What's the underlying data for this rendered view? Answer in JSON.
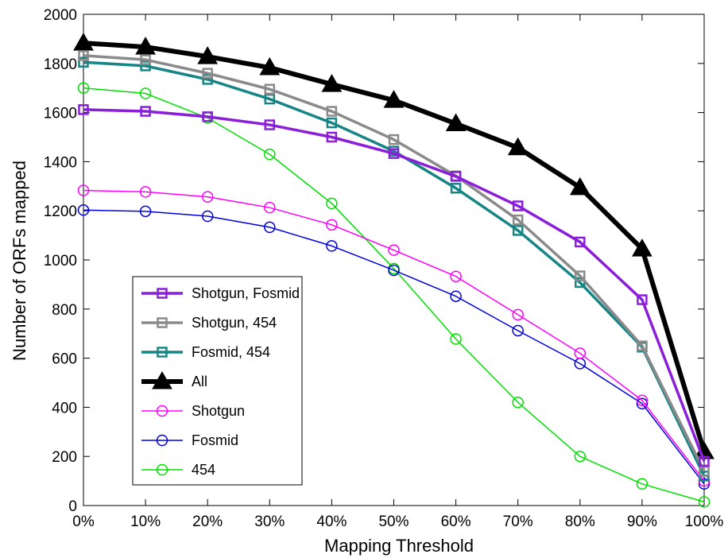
{
  "chart_data": {
    "type": "line",
    "xlabel": "Mapping Threshold",
    "ylabel": "Number of ORFs mapped",
    "categories": [
      "0%",
      "10%",
      "20%",
      "30%",
      "40%",
      "50%",
      "60%",
      "70%",
      "80%",
      "90%",
      "100%"
    ],
    "x": [
      0,
      10,
      20,
      30,
      40,
      50,
      60,
      70,
      80,
      90,
      100
    ],
    "ylim": [
      0,
      2000
    ],
    "yticks": [
      0,
      200,
      400,
      600,
      800,
      1000,
      1200,
      1400,
      1600,
      1800,
      2000
    ],
    "ytick_labels": [
      "0",
      "200",
      "400",
      "600",
      "800",
      "1000",
      "1200",
      "1400",
      "1600",
      "1800",
      "2000"
    ],
    "grid": false,
    "legend_position": "bottom-left",
    "series": [
      {
        "name": "Shotgun, Fosmid",
        "color": "#8b1ed8",
        "marker": "square",
        "linewidth": "thick",
        "values": [
          1612,
          1605,
          1583,
          1550,
          1500,
          1433,
          1340,
          1220,
          1073,
          838,
          180
        ]
      },
      {
        "name": "Shotgun, 454",
        "color": "#8a8a8a",
        "marker": "square",
        "linewidth": "thick",
        "values": [
          1832,
          1815,
          1760,
          1695,
          1605,
          1490,
          1342,
          1163,
          935,
          650,
          140
        ]
      },
      {
        "name": "Fosmid, 454",
        "color": "#178585",
        "marker": "square",
        "linewidth": "thick",
        "values": [
          1805,
          1790,
          1735,
          1655,
          1558,
          1443,
          1292,
          1120,
          908,
          645,
          120
        ]
      },
      {
        "name": "All",
        "color": "#000000",
        "marker": "triangle",
        "linewidth": "extra-thick",
        "values": [
          1883,
          1867,
          1828,
          1783,
          1715,
          1650,
          1555,
          1457,
          1295,
          1045,
          220
        ]
      },
      {
        "name": "Shotgun",
        "color": "#ff00ff",
        "marker": "circle",
        "linewidth": "thin",
        "values": [
          1283,
          1277,
          1257,
          1213,
          1143,
          1040,
          933,
          777,
          620,
          428,
          100
        ]
      },
      {
        "name": "Fosmid",
        "color": "#0000e0",
        "marker": "circle",
        "linewidth": "thin",
        "values": [
          1203,
          1198,
          1178,
          1133,
          1057,
          958,
          852,
          712,
          578,
          415,
          88
        ]
      },
      {
        "name": "454",
        "color": "#00e000",
        "marker": "circle",
        "linewidth": "thin",
        "values": [
          1700,
          1678,
          1578,
          1430,
          1230,
          965,
          678,
          420,
          200,
          88,
          15
        ]
      }
    ]
  }
}
